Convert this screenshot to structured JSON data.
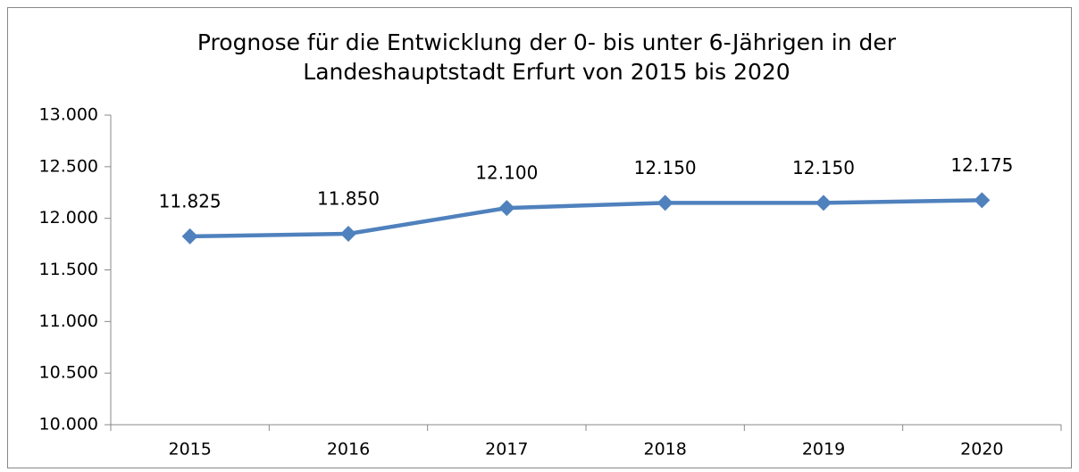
{
  "chart_data": {
    "type": "line",
    "title": [
      "Prognose für die Entwicklung der 0- bis unter 6-Jährigen in der",
      "Landeshauptstadt Erfurt von 2015 bis 2020"
    ],
    "categories": [
      "2015",
      "2016",
      "2017",
      "2018",
      "2019",
      "2020"
    ],
    "series": [
      {
        "color": "#4f81bd",
        "values": [
          11825,
          11850,
          12100,
          12150,
          12150,
          12175
        ],
        "value_labels": [
          "11.825",
          "11.850",
          "12.100",
          "12.150",
          "12.150",
          "12.175"
        ]
      }
    ],
    "ylim": [
      10000,
      13000
    ],
    "yticks": [
      {
        "value": 10000,
        "label": "10.000"
      },
      {
        "value": 10500,
        "label": "10.500"
      },
      {
        "value": 11000,
        "label": "11.000"
      },
      {
        "value": 11500,
        "label": "11.500"
      },
      {
        "value": 12000,
        "label": "12.000"
      },
      {
        "value": 12500,
        "label": "12.500"
      },
      {
        "value": 13000,
        "label": "13.000"
      }
    ]
  }
}
